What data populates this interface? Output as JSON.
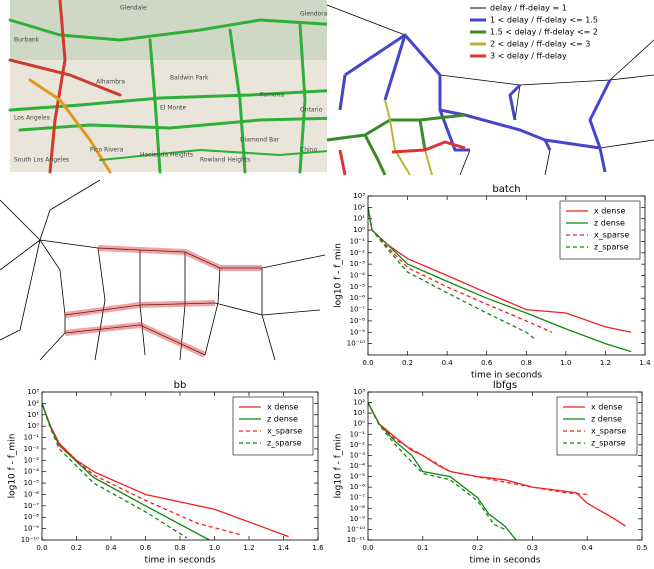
{
  "map": {
    "labels": [
      "Glendale",
      "Burbank",
      "Glendora",
      "Alhambra",
      "Baldwin Park",
      "Los Angeles",
      "El Monte",
      "Pomona",
      "Diamond Bar",
      "Ontario",
      "Rowland Heights",
      "Hacienda Heights",
      "Chino",
      "Pico Rivera",
      "South Los Angeles"
    ]
  },
  "network_legend": {
    "items": [
      {
        "label": "delay / ff-delay = 1",
        "color": "#000000"
      },
      {
        "label": "1 < delay / ff-delay <= 1.5",
        "color": "#4444cc"
      },
      {
        "label": "1.5 < delay / ff-delay <= 2",
        "color": "#3a8a2a"
      },
      {
        "label": "2 < delay / ff-delay <= 3",
        "color": "#b8b830"
      },
      {
        "label": "3 < delay / ff-delay",
        "color": "#dd3333"
      }
    ]
  },
  "chart_data": [
    {
      "type": "line",
      "title": "batch",
      "x_label": "time in seconds",
      "y_label": "log10 f - f_min",
      "yscale": "log",
      "legend": "upper right",
      "xlim": [
        0,
        1.4
      ],
      "ylim": [
        1e-11,
        1000
      ],
      "xticks": [
        {
          "value": 0,
          "label": "0.0"
        },
        0.2,
        0.4,
        0.6,
        0.8,
        {
          "value": 1,
          "label": "1.0"
        },
        1.2,
        1.4
      ],
      "yticks": [
        {
          "value": 1000,
          "label": "10³"
        },
        {
          "value": 100,
          "label": "10²"
        },
        {
          "value": 10,
          "label": "10¹"
        },
        {
          "value": 1,
          "label": "10⁰"
        },
        {
          "value": 0.1,
          "label": "10⁻¹"
        },
        {
          "value": 0.01,
          "label": "10⁻²"
        },
        {
          "value": 0.001,
          "label": "10⁻³"
        },
        {
          "value": 0.0001,
          "label": "10⁻⁴"
        },
        {
          "value": 1e-05,
          "label": "10⁻⁵"
        },
        {
          "value": 1e-06,
          "label": "10⁻⁶"
        },
        {
          "value": 1e-07,
          "label": "10⁻⁷"
        },
        {
          "value": 1e-08,
          "label": "10⁻⁸"
        },
        {
          "value": 1e-09,
          "label": "10⁻⁹"
        },
        {
          "value": 1e-10,
          "label": "10⁻¹⁰"
        }
      ],
      "series": [
        {
          "name": "x dense",
          "color": "#ee2222",
          "style": "solid",
          "x": [
            0,
            0.02,
            0.1,
            0.2,
            0.4,
            0.6,
            0.8,
            1.0,
            1.2,
            1.33
          ],
          "values": [
            100,
            1,
            0.05,
            0.003,
            0.0001,
            3e-06,
            1e-07,
            5e-08,
            3e-09,
            1e-09
          ]
        },
        {
          "name": "z dense",
          "color": "#118811",
          "style": "solid",
          "x": [
            0,
            0.02,
            0.1,
            0.2,
            0.4,
            0.6,
            0.8,
            1.0,
            1.2,
            1.33
          ],
          "values": [
            100,
            1,
            0.05,
            0.001,
            3e-05,
            1e-06,
            5e-08,
            2e-09,
            1e-10,
            2e-11
          ]
        },
        {
          "name": "x_sparse",
          "color": "#ee2222",
          "style": "dashed",
          "x": [
            0,
            0.02,
            0.1,
            0.2,
            0.4,
            0.6,
            0.8,
            0.93
          ],
          "values": [
            100,
            1,
            0.03,
            0.0005,
            1e-05,
            3e-07,
            1e-08,
            1e-09
          ]
        },
        {
          "name": "z_sparse",
          "color": "#118811",
          "style": "dashed",
          "x": [
            0,
            0.02,
            0.1,
            0.2,
            0.4,
            0.6,
            0.8,
            0.85
          ],
          "values": [
            100,
            1,
            0.02,
            0.0002,
            3e-06,
            5e-08,
            1e-09,
            2e-10
          ]
        }
      ]
    },
    {
      "type": "line",
      "title": "bb",
      "x_label": "time in seconds",
      "y_label": "log10 f - f_min",
      "yscale": "log",
      "legend": "upper right",
      "xlim": [
        0,
        1.6
      ],
      "ylim": [
        1e-10,
        1000
      ],
      "xticks": [
        {
          "value": 0,
          "label": "0.0"
        },
        0.2,
        0.4,
        0.6,
        0.8,
        {
          "value": 1,
          "label": "1.0"
        },
        1.2,
        1.4,
        1.6
      ],
      "yticks": [
        {
          "value": 1000,
          "label": "10³"
        },
        {
          "value": 100,
          "label": "10²"
        },
        {
          "value": 10,
          "label": "10¹"
        },
        {
          "value": 1,
          "label": "10⁰"
        },
        {
          "value": 0.1,
          "label": "10⁻¹"
        },
        {
          "value": 0.01,
          "label": "10⁻²"
        },
        {
          "value": 0.001,
          "label": "10⁻³"
        },
        {
          "value": 0.0001,
          "label": "10⁻⁴"
        },
        {
          "value": 1e-05,
          "label": "10⁻⁵"
        },
        {
          "value": 1e-06,
          "label": "10⁻⁶"
        },
        {
          "value": 1e-07,
          "label": "10⁻⁷"
        },
        {
          "value": 1e-08,
          "label": "10⁻⁸"
        },
        {
          "value": 1e-09,
          "label": "10⁻⁹"
        },
        {
          "value": 1e-10,
          "label": "10⁻¹⁰"
        }
      ],
      "series": [
        {
          "name": "x dense",
          "color": "#ee2222",
          "style": "solid",
          "x": [
            0,
            0.05,
            0.1,
            0.2,
            0.3,
            0.6,
            1.0,
            1.43
          ],
          "values": [
            100,
            1,
            0.03,
            0.001,
            0.0001,
            1e-06,
            5e-08,
            2e-10
          ]
        },
        {
          "name": "z dense",
          "color": "#118811",
          "style": "solid",
          "x": [
            0,
            0.05,
            0.1,
            0.3,
            0.6,
            0.97
          ],
          "values": [
            100,
            0.8,
            0.02,
            3e-05,
            1e-07,
            1e-10
          ]
        },
        {
          "name": "x_sparse",
          "color": "#ee2222",
          "style": "dashed",
          "x": [
            0,
            0.05,
            0.1,
            0.3,
            0.6,
            0.9,
            1.15
          ],
          "values": [
            100,
            0.8,
            0.02,
            5e-05,
            3e-07,
            3e-09,
            3e-10
          ]
        },
        {
          "name": "z_sparse",
          "color": "#118811",
          "style": "dashed",
          "x": [
            0,
            0.05,
            0.1,
            0.3,
            0.6,
            0.84
          ],
          "values": [
            100,
            0.6,
            0.01,
            1e-05,
            3e-08,
            1.5e-10
          ]
        }
      ]
    },
    {
      "type": "line",
      "title": "lbfgs",
      "x_label": "time in seconds",
      "y_label": "log10 f - f_min",
      "yscale": "log",
      "legend": "upper right",
      "xlim": [
        0,
        0.5
      ],
      "ylim": [
        1e-11,
        1000
      ],
      "xticks": [
        {
          "value": 0,
          "label": "0.0"
        },
        0.1,
        0.2,
        0.3,
        0.4,
        0.5
      ],
      "yticks": [
        {
          "value": 1000,
          "label": "10³"
        },
        {
          "value": 100,
          "label": "10²"
        },
        {
          "value": 10,
          "label": "10¹"
        },
        {
          "value": 1,
          "label": "10⁰"
        },
        {
          "value": 0.1,
          "label": "10⁻¹"
        },
        {
          "value": 0.01,
          "label": "10⁻²"
        },
        {
          "value": 0.001,
          "label": "10⁻³"
        },
        {
          "value": 0.0001,
          "label": "10⁻⁴"
        },
        {
          "value": 1e-05,
          "label": "10⁻⁵"
        },
        {
          "value": 1e-06,
          "label": "10⁻⁶"
        },
        {
          "value": 1e-07,
          "label": "10⁻⁷"
        },
        {
          "value": 1e-08,
          "label": "10⁻⁸"
        },
        {
          "value": 1e-09,
          "label": "10⁻⁹"
        },
        {
          "value": 1e-10,
          "label": "10⁻¹⁰"
        },
        {
          "value": 1e-11,
          "label": "10⁻¹¹"
        }
      ],
      "series": [
        {
          "name": "x dense",
          "color": "#ee2222",
          "style": "solid",
          "x": [
            0,
            0.02,
            0.05,
            0.08,
            0.1,
            0.13,
            0.15,
            0.2,
            0.25,
            0.3,
            0.38,
            0.4,
            0.45,
            0.47
          ],
          "values": [
            100,
            1,
            0.05,
            0.003,
            0.001,
            0.0001,
            3e-05,
            1e-05,
            5e-06,
            1e-06,
            3e-07,
            3e-08,
            1e-09,
            2e-10
          ]
        },
        {
          "name": "z dense",
          "color": "#118811",
          "style": "solid",
          "x": [
            0,
            0.02,
            0.05,
            0.08,
            0.1,
            0.15,
            0.2,
            0.22,
            0.25,
            0.27
          ],
          "values": [
            100,
            1,
            0.02,
            0.001,
            3e-05,
            1e-05,
            1e-07,
            3e-09,
            2e-10,
            1e-11
          ]
        },
        {
          "name": "x_sparse",
          "color": "#ee2222",
          "style": "dashed",
          "x": [
            0,
            0.02,
            0.05,
            0.1,
            0.15,
            0.25,
            0.3,
            0.36,
            0.4
          ],
          "values": [
            100,
            1,
            0.03,
            0.001,
            3e-05,
            3e-06,
            1e-06,
            3e-07,
            2e-07
          ]
        },
        {
          "name": "z_sparse",
          "color": "#118811",
          "style": "dashed",
          "x": [
            0,
            0.02,
            0.05,
            0.1,
            0.15,
            0.2,
            0.23,
            0.25
          ],
          "values": [
            100,
            0.8,
            0.01,
            2e-05,
            5e-06,
            5e-08,
            3e-10,
            1e-10
          ]
        }
      ]
    }
  ]
}
